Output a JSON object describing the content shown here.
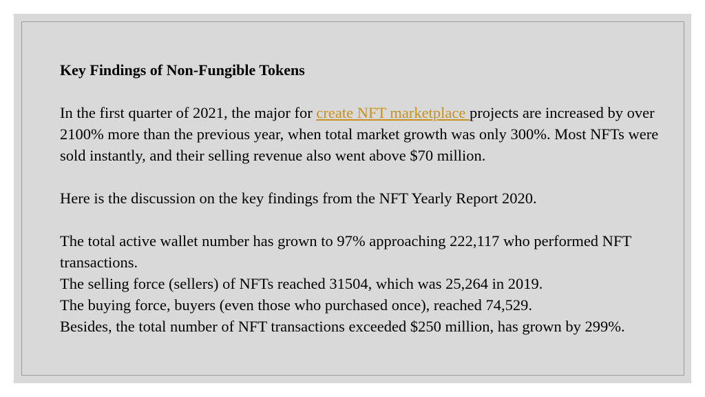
{
  "slide": {
    "title": "Key Findings of Non-Fungible Tokens",
    "intro": {
      "before_link": "In the first quarter of 2021, the major for ",
      "link_text": "create NFT marketplace ",
      "after_link": "projects are increased by over 2100% more than the previous year, when total market growth was only 300%. Most NFTs were sold instantly, and their selling revenue also went above $70 million."
    },
    "discussion": "Here is the discussion on the key findings from the NFT Yearly Report 2020.",
    "findings": [
      "The total active wallet number has grown to 97% approaching 222,117 who performed NFT transactions.",
      "The selling force (sellers) of NFTs reached 31504, which was 25,264 in 2019.",
      "The buying force, buyers (even those who purchased once), reached 74,529.",
      "Besides, the total number of NFT transactions exceeded $250 million, has grown by 299%."
    ]
  },
  "colors": {
    "background": "#d9d9d9",
    "link": "#c8911f",
    "border": "#9a9a9a"
  }
}
